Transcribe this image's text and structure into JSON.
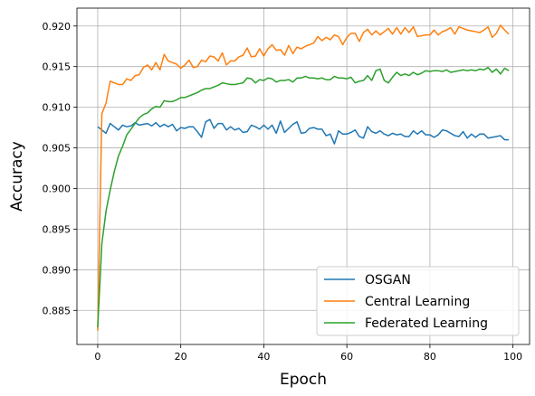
{
  "chart_data": {
    "type": "line",
    "xlabel": "Epoch",
    "ylabel": "Accuracy",
    "xlim": [
      -5,
      104
    ],
    "ylim": [
      0.8808,
      0.9222
    ],
    "xticks": [
      0,
      20,
      40,
      60,
      80,
      100
    ],
    "xtick_labels": [
      "0",
      "20",
      "40",
      "60",
      "80",
      "100"
    ],
    "yticks": [
      0.885,
      0.89,
      0.895,
      0.9,
      0.905,
      0.91,
      0.915,
      0.92
    ],
    "ytick_labels": [
      "0.885",
      "0.890",
      "0.895",
      "0.900",
      "0.905",
      "0.910",
      "0.915",
      "0.920"
    ],
    "grid": true,
    "legend_position": "lower-right",
    "series": [
      {
        "name": "OSGAN",
        "color": "#1f77b4",
        "values": [
          0.9076,
          0.9072,
          0.9068,
          0.908,
          0.9076,
          0.9072,
          0.9078,
          0.9076,
          0.9077,
          0.9081,
          0.9078,
          0.9079,
          0.908,
          0.9077,
          0.9081,
          0.9076,
          0.9079,
          0.9076,
          0.9079,
          0.9071,
          0.9075,
          0.9074,
          0.9076,
          0.9076,
          0.907,
          0.9063,
          0.9082,
          0.9085,
          0.9074,
          0.908,
          0.908,
          0.9072,
          0.9076,
          0.9072,
          0.9074,
          0.9069,
          0.907,
          0.9078,
          0.9076,
          0.9073,
          0.9078,
          0.9073,
          0.9078,
          0.9068,
          0.9083,
          0.9069,
          0.9074,
          0.9079,
          0.9082,
          0.9068,
          0.9069,
          0.9074,
          0.9075,
          0.9073,
          0.9073,
          0.9065,
          0.9067,
          0.9055,
          0.9071,
          0.9067,
          0.9067,
          0.9069,
          0.9072,
          0.9064,
          0.9062,
          0.9076,
          0.907,
          0.9068,
          0.9071,
          0.9067,
          0.9065,
          0.9068,
          0.9066,
          0.9067,
          0.9064,
          0.9064,
          0.9071,
          0.9067,
          0.9071,
          0.9066,
          0.9066,
          0.9063,
          0.9066,
          0.9072,
          0.9071,
          0.9068,
          0.9065,
          0.9064,
          0.907,
          0.9062,
          0.9067,
          0.9063,
          0.9067,
          0.9067,
          0.9062,
          0.9063,
          0.9064,
          0.9065,
          0.906,
          0.906
        ]
      },
      {
        "name": "Central Learning",
        "color": "#ff7f0e",
        "values": [
          0.8825,
          0.9092,
          0.9105,
          0.9132,
          0.913,
          0.9128,
          0.9128,
          0.9135,
          0.9133,
          0.9139,
          0.914,
          0.9149,
          0.9152,
          0.9146,
          0.9155,
          0.9146,
          0.9165,
          0.9157,
          0.9155,
          0.9153,
          0.9148,
          0.9152,
          0.9158,
          0.9149,
          0.915,
          0.9158,
          0.9156,
          0.9163,
          0.9162,
          0.9157,
          0.9167,
          0.9152,
          0.9157,
          0.9157,
          0.9162,
          0.9164,
          0.9173,
          0.9162,
          0.9163,
          0.9172,
          0.9163,
          0.9172,
          0.9177,
          0.917,
          0.9171,
          0.9164,
          0.9176,
          0.9166,
          0.9174,
          0.9172,
          0.9175,
          0.9177,
          0.9179,
          0.9187,
          0.9182,
          0.9186,
          0.9183,
          0.9189,
          0.9187,
          0.9177,
          0.9186,
          0.9191,
          0.9191,
          0.9181,
          0.9192,
          0.9196,
          0.9189,
          0.9194,
          0.9189,
          0.9193,
          0.9197,
          0.919,
          0.9198,
          0.919,
          0.9198,
          0.9192,
          0.9199,
          0.9187,
          0.9188,
          0.9189,
          0.9189,
          0.9195,
          0.9189,
          0.9193,
          0.9195,
          0.9198,
          0.919,
          0.9199,
          0.9197,
          0.9195,
          0.9194,
          0.9193,
          0.9192,
          0.9195,
          0.9199,
          0.9186,
          0.9191,
          0.9201,
          0.9195,
          0.919
        ]
      },
      {
        "name": "Federated Learning",
        "color": "#2ca02c",
        "values": [
          0.8829,
          0.8932,
          0.8972,
          0.8998,
          0.9021,
          0.904,
          0.9052,
          0.9066,
          0.9073,
          0.908,
          0.9087,
          0.9091,
          0.9093,
          0.9098,
          0.9101,
          0.91,
          0.9108,
          0.9107,
          0.9107,
          0.9109,
          0.9112,
          0.9112,
          0.9114,
          0.9116,
          0.9118,
          0.9121,
          0.9123,
          0.9123,
          0.9125,
          0.9127,
          0.913,
          0.9129,
          0.9128,
          0.9128,
          0.9129,
          0.913,
          0.9136,
          0.9135,
          0.913,
          0.9134,
          0.9133,
          0.9136,
          0.9135,
          0.9131,
          0.9133,
          0.9133,
          0.9134,
          0.9131,
          0.9136,
          0.9136,
          0.9138,
          0.9136,
          0.9136,
          0.9135,
          0.9136,
          0.9134,
          0.9134,
          0.9138,
          0.9136,
          0.9136,
          0.9135,
          0.9137,
          0.913,
          0.9132,
          0.9133,
          0.9139,
          0.9133,
          0.9145,
          0.9147,
          0.9133,
          0.913,
          0.9137,
          0.9143,
          0.9139,
          0.9141,
          0.9139,
          0.9143,
          0.914,
          0.9142,
          0.9145,
          0.9144,
          0.9145,
          0.9145,
          0.9144,
          0.9146,
          0.9143,
          0.9144,
          0.9145,
          0.9146,
          0.9145,
          0.9146,
          0.9145,
          0.9147,
          0.9146,
          0.9149,
          0.9143,
          0.9147,
          0.9141,
          0.9148,
          0.9145
        ]
      }
    ]
  }
}
